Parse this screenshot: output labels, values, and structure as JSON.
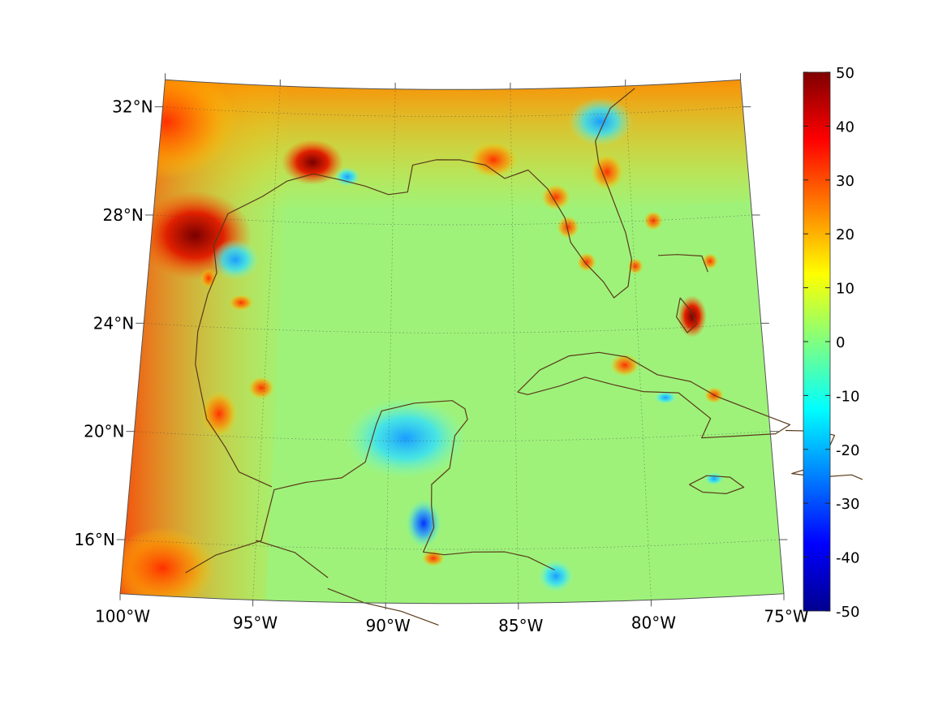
{
  "map": {
    "projection": "lambert-conformal-conic",
    "lon_range": [
      -100,
      -75
    ],
    "lat_range": [
      14,
      33
    ],
    "lon_ticks": [
      {
        "value": -100,
        "label": "100°W"
      },
      {
        "value": -95,
        "label": "95°W"
      },
      {
        "value": -90,
        "label": "90°W"
      },
      {
        "value": -85,
        "label": "85°W"
      },
      {
        "value": -80,
        "label": "80°W"
      },
      {
        "value": -75,
        "label": "75°W"
      }
    ],
    "lat_ticks": [
      {
        "value": 32,
        "label": "32°N"
      },
      {
        "value": 28,
        "label": "28°N"
      },
      {
        "value": 24,
        "label": "24°N"
      },
      {
        "value": 20,
        "label": "20°N"
      },
      {
        "value": 16,
        "label": "16°N"
      }
    ],
    "grid": true,
    "coastline_color": "#5a3a1a",
    "field_colors": {
      "background": "#9ef27a",
      "gulf_interior": "#8ff08a",
      "hot_land": "#f23a10",
      "very_hot": "#8b0000",
      "warm": "#ffb000",
      "cool": "#2fd6ff",
      "cold": "#1060ff"
    }
  },
  "colorbar": {
    "colormap": "jet",
    "min": -50,
    "max": 50,
    "ticks": [
      {
        "value": 50,
        "label": "50"
      },
      {
        "value": 40,
        "label": "40"
      },
      {
        "value": 30,
        "label": "30"
      },
      {
        "value": 20,
        "label": "20"
      },
      {
        "value": 10,
        "label": "10"
      },
      {
        "value": 0,
        "label": "0"
      },
      {
        "value": -10,
        "label": "-10"
      },
      {
        "value": -20,
        "label": "-20"
      },
      {
        "value": -30,
        "label": "-30"
      },
      {
        "value": -40,
        "label": "-40"
      },
      {
        "value": -50,
        "label": "-50"
      }
    ]
  }
}
